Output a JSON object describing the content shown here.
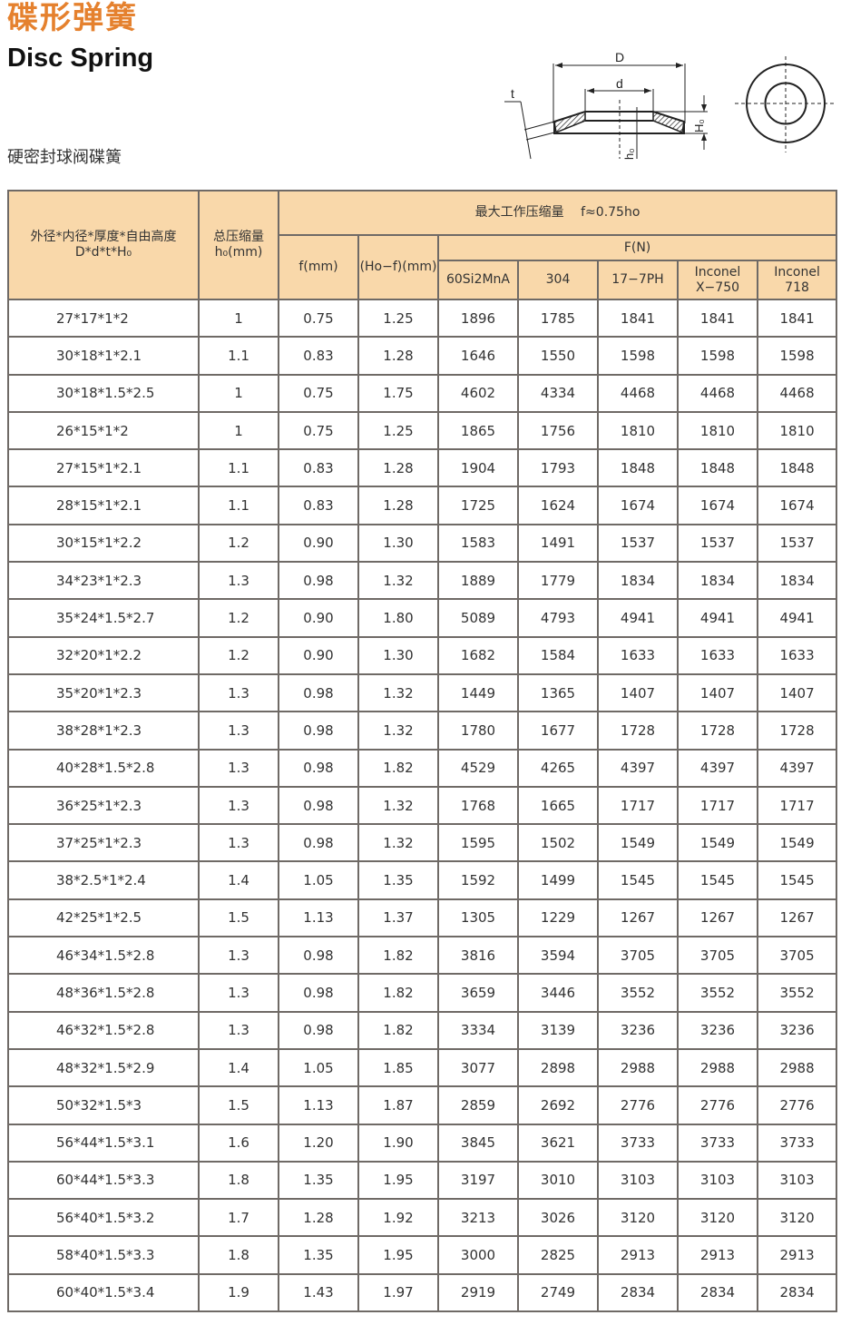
{
  "header": {
    "title_cn": "碟形弹簧",
    "title_en": "Disc Spring",
    "subtitle": "硬密封球阀碟簧"
  },
  "diagram": {
    "labels": {
      "D": "D",
      "d": "d",
      "t": "t",
      "H0": "H₀",
      "h0": "h₀"
    }
  },
  "table": {
    "headers": {
      "spec": "外径*内径*厚度*自由高度",
      "spec_sub": "D*d*t*H₀",
      "total": "总压缩量",
      "total_sub": "h₀(mm)",
      "max_work": "最大工作压缩量　 f≈0.75ho",
      "f": "f(mm)",
      "hof": "(Ho−f)(mm)",
      "force": "F(N)",
      "materials": [
        "60Si2MnA",
        "304",
        "17−7PH",
        "Inconel X−750",
        "Inconel 718"
      ]
    },
    "rows": [
      [
        "27*17*1*2",
        "1",
        "0.75",
        "1.25",
        "1896",
        "1785",
        "1841",
        "1841",
        "1841"
      ],
      [
        "30*18*1*2.1",
        "1.1",
        "0.83",
        "1.28",
        "1646",
        "1550",
        "1598",
        "1598",
        "1598"
      ],
      [
        "30*18*1.5*2.5",
        "1",
        "0.75",
        "1.75",
        "4602",
        "4334",
        "4468",
        "4468",
        "4468"
      ],
      [
        "26*15*1*2",
        "1",
        "0.75",
        "1.25",
        "1865",
        "1756",
        "1810",
        "1810",
        "1810"
      ],
      [
        "27*15*1*2.1",
        "1.1",
        "0.83",
        "1.28",
        "1904",
        "1793",
        "1848",
        "1848",
        "1848"
      ],
      [
        "28*15*1*2.1",
        "1.1",
        "0.83",
        "1.28",
        "1725",
        "1624",
        "1674",
        "1674",
        "1674"
      ],
      [
        "30*15*1*2.2",
        "1.2",
        "0.90",
        "1.30",
        "1583",
        "1491",
        "1537",
        "1537",
        "1537"
      ],
      [
        "34*23*1*2.3",
        "1.3",
        "0.98",
        "1.32",
        "1889",
        "1779",
        "1834",
        "1834",
        "1834"
      ],
      [
        "35*24*1.5*2.7",
        "1.2",
        "0.90",
        "1.80",
        "5089",
        "4793",
        "4941",
        "4941",
        "4941"
      ],
      [
        "32*20*1*2.2",
        "1.2",
        "0.90",
        "1.30",
        "1682",
        "1584",
        "1633",
        "1633",
        "1633"
      ],
      [
        "35*20*1*2.3",
        "1.3",
        "0.98",
        "1.32",
        "1449",
        "1365",
        "1407",
        "1407",
        "1407"
      ],
      [
        "38*28*1*2.3",
        "1.3",
        "0.98",
        "1.32",
        "1780",
        "1677",
        "1728",
        "1728",
        "1728"
      ],
      [
        "40*28*1.5*2.8",
        "1.3",
        "0.98",
        "1.82",
        "4529",
        "4265",
        "4397",
        "4397",
        "4397"
      ],
      [
        "36*25*1*2.3",
        "1.3",
        "0.98",
        "1.32",
        "1768",
        "1665",
        "1717",
        "1717",
        "1717"
      ],
      [
        "37*25*1*2.3",
        "1.3",
        "0.98",
        "1.32",
        "1595",
        "1502",
        "1549",
        "1549",
        "1549"
      ],
      [
        "38*2.5*1*2.4",
        "1.4",
        "1.05",
        "1.35",
        "1592",
        "1499",
        "1545",
        "1545",
        "1545"
      ],
      [
        "42*25*1*2.5",
        "1.5",
        "1.13",
        "1.37",
        "1305",
        "1229",
        "1267",
        "1267",
        "1267"
      ],
      [
        "46*34*1.5*2.8",
        "1.3",
        "0.98",
        "1.82",
        "3816",
        "3594",
        "3705",
        "3705",
        "3705"
      ],
      [
        "48*36*1.5*2.8",
        "1.3",
        "0.98",
        "1.82",
        "3659",
        "3446",
        "3552",
        "3552",
        "3552"
      ],
      [
        "46*32*1.5*2.8",
        "1.3",
        "0.98",
        "1.82",
        "3334",
        "3139",
        "3236",
        "3236",
        "3236"
      ],
      [
        "48*32*1.5*2.9",
        "1.4",
        "1.05",
        "1.85",
        "3077",
        "2898",
        "2988",
        "2988",
        "2988"
      ],
      [
        "50*32*1.5*3",
        "1.5",
        "1.13",
        "1.87",
        "2859",
        "2692",
        "2776",
        "2776",
        "2776"
      ],
      [
        "56*44*1.5*3.1",
        "1.6",
        "1.20",
        "1.90",
        "3845",
        "3621",
        "3733",
        "3733",
        "3733"
      ],
      [
        "60*44*1.5*3.3",
        "1.8",
        "1.35",
        "1.95",
        "3197",
        "3010",
        "3103",
        "3103",
        "3103"
      ],
      [
        "56*40*1.5*3.2",
        "1.7",
        "1.28",
        "1.92",
        "3213",
        "3026",
        "3120",
        "3120",
        "3120"
      ],
      [
        "58*40*1.5*3.3",
        "1.8",
        "1.35",
        "1.95",
        "3000",
        "2825",
        "2913",
        "2913",
        "2913"
      ],
      [
        "60*40*1.5*3.4",
        "1.9",
        "1.43",
        "1.97",
        "2919",
        "2749",
        "2834",
        "2834",
        "2834"
      ]
    ]
  },
  "colors": {
    "title": "#e5812e",
    "header_bg": "#f9d8aa",
    "border": "#6f6a66"
  }
}
